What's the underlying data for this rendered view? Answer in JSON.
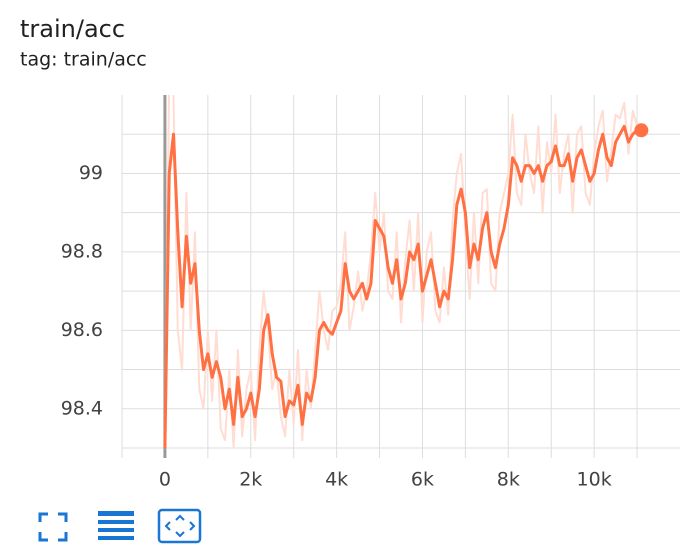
{
  "chart_data": {
    "type": "line",
    "title": "train/acc",
    "subtitle": "tag: train/acc",
    "x": [
      0,
      100,
      200,
      300,
      400,
      500,
      600,
      700,
      800,
      900,
      1000,
      1100,
      1200,
      1300,
      1400,
      1500,
      1600,
      1700,
      1800,
      1900,
      2000,
      2100,
      2200,
      2300,
      2400,
      2500,
      2600,
      2700,
      2800,
      2900,
      3000,
      3100,
      3200,
      3300,
      3400,
      3500,
      3600,
      3700,
      3800,
      3900,
      4000,
      4100,
      4200,
      4300,
      4400,
      4500,
      4600,
      4700,
      4800,
      4900,
      5000,
      5100,
      5200,
      5300,
      5400,
      5500,
      5600,
      5700,
      5800,
      5900,
      6000,
      6100,
      6200,
      6300,
      6400,
      6500,
      6600,
      6700,
      6800,
      6900,
      7000,
      7100,
      7200,
      7300,
      7400,
      7500,
      7600,
      7700,
      7800,
      7900,
      8000,
      8100,
      8200,
      8300,
      8400,
      8500,
      8600,
      8700,
      8800,
      8900,
      9000,
      9100,
      9200,
      9300,
      9400,
      9500,
      9600,
      9700,
      9800,
      9900,
      10000,
      10100,
      10200,
      10300,
      10400,
      10500,
      10600,
      10700,
      10800,
      10900,
      11000,
      11100
    ],
    "series": [
      {
        "color": "#ffddd3",
        "values": [
          98.3,
          99.25,
          99.2,
          98.6,
          98.5,
          98.95,
          98.6,
          98.85,
          98.45,
          98.4,
          98.6,
          98.42,
          98.6,
          98.35,
          98.32,
          98.5,
          98.3,
          98.55,
          98.33,
          98.45,
          98.5,
          98.32,
          98.55,
          98.7,
          98.6,
          98.45,
          98.5,
          98.38,
          98.33,
          98.5,
          98.36,
          98.55,
          98.32,
          98.5,
          98.4,
          98.55,
          98.7,
          98.6,
          98.55,
          98.65,
          98.66,
          98.72,
          98.85,
          98.6,
          98.66,
          98.75,
          98.65,
          98.7,
          98.8,
          98.95,
          98.8,
          98.9,
          98.7,
          98.68,
          98.85,
          98.62,
          98.78,
          98.88,
          98.7,
          98.9,
          98.62,
          98.8,
          98.85,
          98.65,
          98.62,
          98.76,
          98.64,
          98.88,
          99.0,
          99.05,
          98.85,
          98.68,
          98.9,
          98.72,
          98.95,
          98.96,
          98.72,
          98.7,
          98.9,
          98.95,
          99.0,
          99.15,
          98.95,
          98.92,
          99.1,
          99.0,
          98.95,
          99.12,
          98.9,
          99.08,
          99.0,
          99.15,
          98.95,
          99.05,
          99.1,
          98.9,
          99.1,
          99.12,
          98.95,
          98.92,
          99.05,
          99.12,
          99.16,
          98.98,
          99.06,
          99.15,
          99.14,
          99.18,
          99.05,
          99.16,
          99.12,
          99.1
        ]
      },
      {
        "color": "#ff7043",
        "values": [
          98.3,
          99.0,
          99.1,
          98.85,
          98.66,
          98.84,
          98.72,
          98.77,
          98.6,
          98.5,
          98.54,
          98.48,
          98.52,
          98.48,
          98.4,
          98.45,
          98.36,
          98.48,
          98.38,
          98.4,
          98.44,
          98.38,
          98.45,
          98.6,
          98.64,
          98.54,
          98.48,
          98.47,
          98.38,
          98.42,
          98.41,
          98.46,
          98.36,
          98.44,
          98.42,
          98.48,
          98.6,
          98.62,
          98.6,
          98.59,
          98.62,
          98.65,
          98.77,
          98.7,
          98.68,
          98.7,
          98.72,
          98.68,
          98.72,
          98.88,
          98.86,
          98.84,
          98.76,
          98.72,
          98.78,
          98.68,
          98.72,
          98.8,
          98.78,
          98.82,
          98.7,
          98.74,
          98.78,
          98.72,
          98.66,
          98.7,
          98.68,
          98.78,
          98.92,
          98.96,
          98.9,
          98.76,
          98.82,
          98.78,
          98.86,
          98.9,
          98.8,
          98.76,
          98.82,
          98.86,
          98.92,
          99.04,
          99.02,
          98.98,
          99.02,
          99.02,
          99.0,
          99.02,
          98.98,
          99.02,
          99.03,
          99.07,
          99.02,
          99.02,
          99.05,
          98.98,
          99.04,
          99.06,
          99.02,
          98.98,
          99.0,
          99.06,
          99.1,
          99.04,
          99.02,
          99.08,
          99.1,
          99.12,
          99.08,
          99.1,
          99.11,
          99.11
        ]
      }
    ],
    "xlim": [
      -1000,
      12000
    ],
    "xticks": [
      0,
      {
        "value": 2000,
        "label": "2k"
      },
      {
        "value": 4000,
        "label": "4k"
      },
      {
        "value": 6000,
        "label": "6k"
      },
      {
        "value": 8000,
        "label": "8k"
      },
      {
        "value": 10000,
        "label": "10k"
      }
    ],
    "xminorticks": [
      -1000,
      1000,
      3000,
      5000,
      7000,
      9000,
      11000
    ],
    "ylim": [
      98.3,
      99.2
    ],
    "yticks": [
      98.4,
      98.6,
      98.8,
      99
    ],
    "yminorticks": [
      98.3,
      98.5,
      98.7,
      98.9,
      99.1
    ],
    "grid": true
  }
}
